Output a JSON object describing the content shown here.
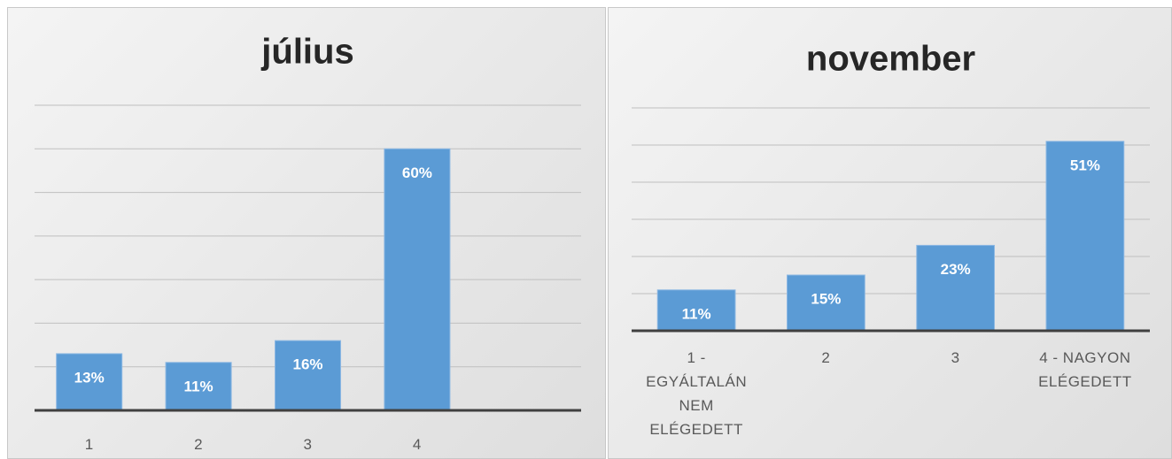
{
  "chart_data": [
    {
      "type": "bar",
      "title": "július",
      "categories": [
        "1",
        "2",
        "3",
        "4",
        null
      ],
      "values": [
        13,
        11,
        16,
        60,
        null
      ],
      "value_labels": [
        "13%",
        "11%",
        "16%",
        "60%",
        null
      ],
      "color": "#5b9bd5",
      "ylim": [
        0,
        70
      ],
      "yticks": [
        0,
        10,
        20,
        30,
        40,
        50,
        60,
        70
      ],
      "grid": true
    },
    {
      "type": "bar",
      "title": "november",
      "categories": [
        "1 - EGYÁLTALÁN NEM ELÉGEDETT",
        "2",
        "3",
        "4 - NAGYON ELÉGEDETT"
      ],
      "values": [
        11,
        15,
        23,
        51
      ],
      "value_labels": [
        "11%",
        "15%",
        "23%",
        "51%"
      ],
      "color": "#5b9bd5",
      "ylim": [
        0,
        60
      ],
      "yticks": [
        0,
        10,
        20,
        30,
        40,
        50,
        60
      ],
      "grid": true
    }
  ]
}
